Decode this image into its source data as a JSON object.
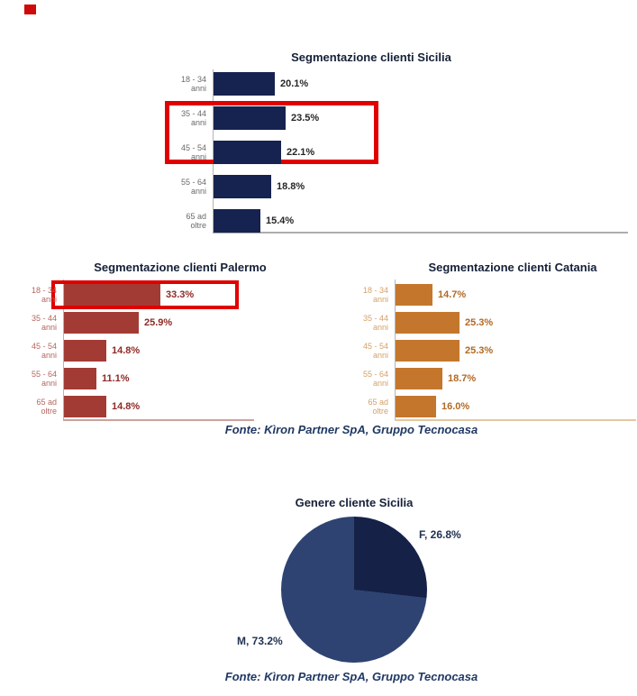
{
  "chart_data": [
    {
      "type": "bar",
      "id": "sicilia",
      "orientation": "horizontal",
      "title": "Segmentazione clienti Sicilia",
      "categories": [
        "18 - 34 anni",
        "35 - 44 anni",
        "45 - 54 anni",
        "55 - 64 anni",
        "65 ad oltre"
      ],
      "values": [
        20.1,
        23.5,
        22.1,
        18.8,
        15.4
      ],
      "value_labels": [
        "20.1%",
        "23.5%",
        "22.1%",
        "18.8%",
        "15.4%"
      ],
      "xlim": [
        0,
        35
      ],
      "grid": false,
      "legend": "none",
      "bar_color": "#162350",
      "category_label_color": "#6a6a6a",
      "value_label_color": "#262626",
      "annotation": "red highlight box around the 35 - 44 anni and 45 - 54 anni bars"
    },
    {
      "type": "bar",
      "id": "palermo",
      "orientation": "horizontal",
      "title": "Segmentazione clienti Palermo",
      "categories": [
        "18 - 34 anni",
        "35 - 44 anni",
        "45 - 54 anni",
        "55 - 64 anni",
        "65 ad oltre"
      ],
      "values": [
        33.3,
        25.9,
        14.8,
        11.1,
        14.8
      ],
      "value_labels": [
        "33.3%",
        "25.9%",
        "14.8%",
        "11.1%",
        "14.8%"
      ],
      "xlim": [
        0,
        40
      ],
      "grid": false,
      "legend": "none",
      "bar_color": "#a33b35",
      "category_label_color": "#b4665e",
      "value_label_color": "#8e2a25",
      "annotation": "red highlight box around the 18 - 34 anni bar"
    },
    {
      "type": "bar",
      "id": "catania",
      "orientation": "horizontal",
      "title": "Segmentazione clienti Catania",
      "categories": [
        "18 - 34 anni",
        "35 - 44 anni",
        "45 - 54 anni",
        "55 - 64 anni",
        "65 ad oltre"
      ],
      "values": [
        14.7,
        25.3,
        25.3,
        18.7,
        16.0
      ],
      "value_labels": [
        "14.7%",
        "25.3%",
        "25.3%",
        "18.7%",
        "16.0%"
      ],
      "xlim": [
        0,
        40
      ],
      "grid": false,
      "legend": "none",
      "bar_color": "#c4772c",
      "category_label_color": "#d4a06a",
      "value_label_color": "#b16a24",
      "annotation": "none"
    },
    {
      "type": "pie",
      "id": "genere",
      "title": "Genere cliente Sicilia",
      "labels": [
        "F",
        "M"
      ],
      "values": [
        26.8,
        73.2
      ],
      "point_labels": [
        "F, 26.8%",
        "M, 73.2%"
      ],
      "colors": [
        "#152147",
        "#2e4371"
      ],
      "legend": "none"
    }
  ],
  "fonte": {
    "top": "Fonte: Kìron Partner SpA, Gruppo Tecnocasa",
    "bottom": "Fonte: Kìron Partner SpA, Gruppo Tecnocasa"
  },
  "colors": {
    "highlight_box": "#e10000",
    "stray_mark": "#cf0a0a",
    "title_text": "#152038",
    "fonte_text": "#203864",
    "sicilia_baseline": "#adadad",
    "palermo_baseline": "#c9a49d",
    "catania_baseline": "#e4c8a1"
  }
}
